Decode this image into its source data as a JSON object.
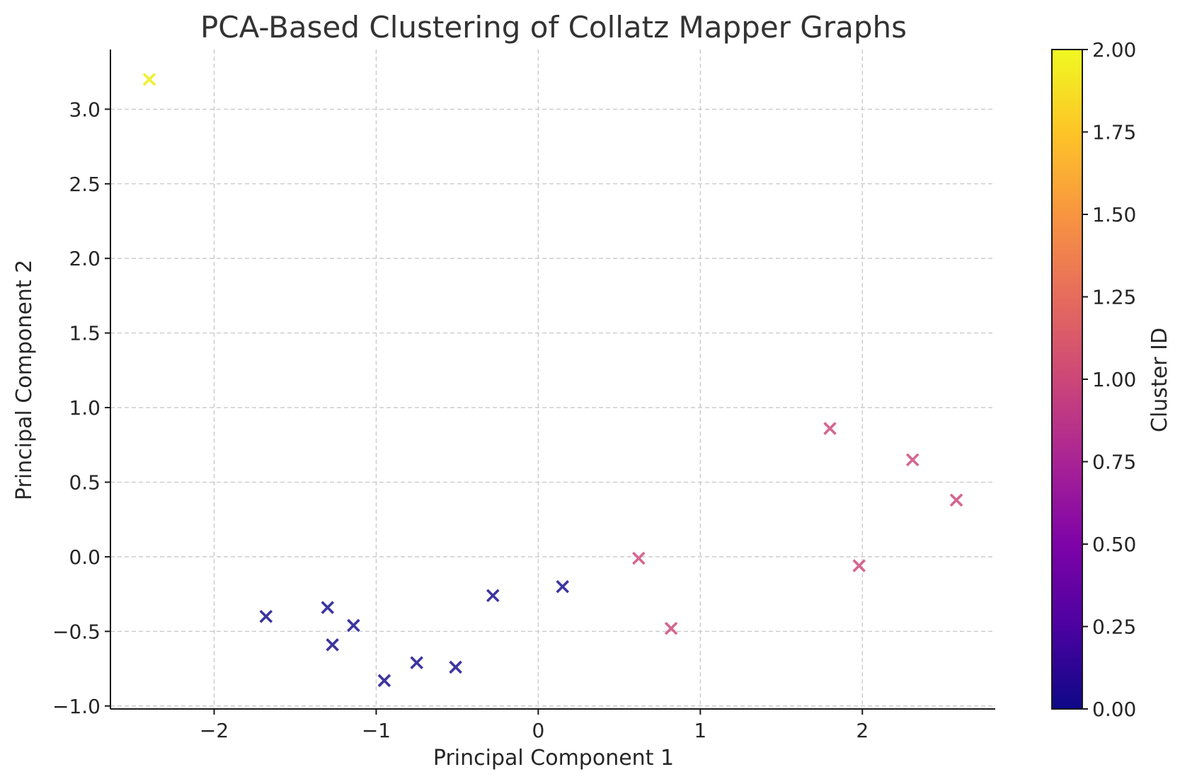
{
  "chart_data": {
    "type": "scatter",
    "title": "PCA-Based Clustering of Collatz Mapper Graphs",
    "xlabel": "Principal Component 1",
    "ylabel": "Principal Component 2",
    "xlim": [
      -2.64,
      2.82
    ],
    "ylim": [
      -1.02,
      3.4
    ],
    "xticks": [
      -2,
      -1,
      0,
      1,
      2
    ],
    "xtick_labels": [
      "−2",
      "−1",
      "0",
      "1",
      "2"
    ],
    "yticks": [
      -1.0,
      -0.5,
      0.0,
      0.5,
      1.0,
      1.5,
      2.0,
      2.5,
      3.0
    ],
    "ytick_labels": [
      "−1.0",
      "−0.5",
      "0.0",
      "0.5",
      "1.0",
      "1.5",
      "2.0",
      "2.5",
      "3.0"
    ],
    "grid": true,
    "marker": "x",
    "colormap": "plasma",
    "colorbar": {
      "label": "Cluster ID",
      "range": [
        0,
        2
      ],
      "ticks": [
        0,
        0.25,
        0.5,
        0.75,
        1.0,
        1.25,
        1.5,
        1.75,
        2.0
      ],
      "tick_labels": [
        "0.00",
        "0.25",
        "0.50",
        "0.75",
        "1.00",
        "1.25",
        "1.50",
        "1.75",
        "2.00"
      ]
    },
    "cluster_colors": {
      "0": "#3c35a0",
      "1": "#d5668f",
      "2": "#f0f035"
    },
    "points": [
      {
        "x": -2.4,
        "y": 3.2,
        "cluster": 2
      },
      {
        "x": -1.68,
        "y": -0.4,
        "cluster": 0
      },
      {
        "x": -1.3,
        "y": -0.34,
        "cluster": 0
      },
      {
        "x": -1.27,
        "y": -0.59,
        "cluster": 0
      },
      {
        "x": -1.14,
        "y": -0.46,
        "cluster": 0
      },
      {
        "x": -0.95,
        "y": -0.83,
        "cluster": 0
      },
      {
        "x": -0.75,
        "y": -0.71,
        "cluster": 0
      },
      {
        "x": -0.51,
        "y": -0.74,
        "cluster": 0
      },
      {
        "x": -0.28,
        "y": -0.26,
        "cluster": 0
      },
      {
        "x": 0.15,
        "y": -0.2,
        "cluster": 0
      },
      {
        "x": 0.62,
        "y": -0.01,
        "cluster": 1
      },
      {
        "x": 0.82,
        "y": -0.48,
        "cluster": 1
      },
      {
        "x": 1.8,
        "y": 0.86,
        "cluster": 1
      },
      {
        "x": 1.98,
        "y": -0.06,
        "cluster": 1
      },
      {
        "x": 2.31,
        "y": 0.65,
        "cluster": 1
      },
      {
        "x": 2.58,
        "y": 0.38,
        "cluster": 1
      }
    ]
  }
}
